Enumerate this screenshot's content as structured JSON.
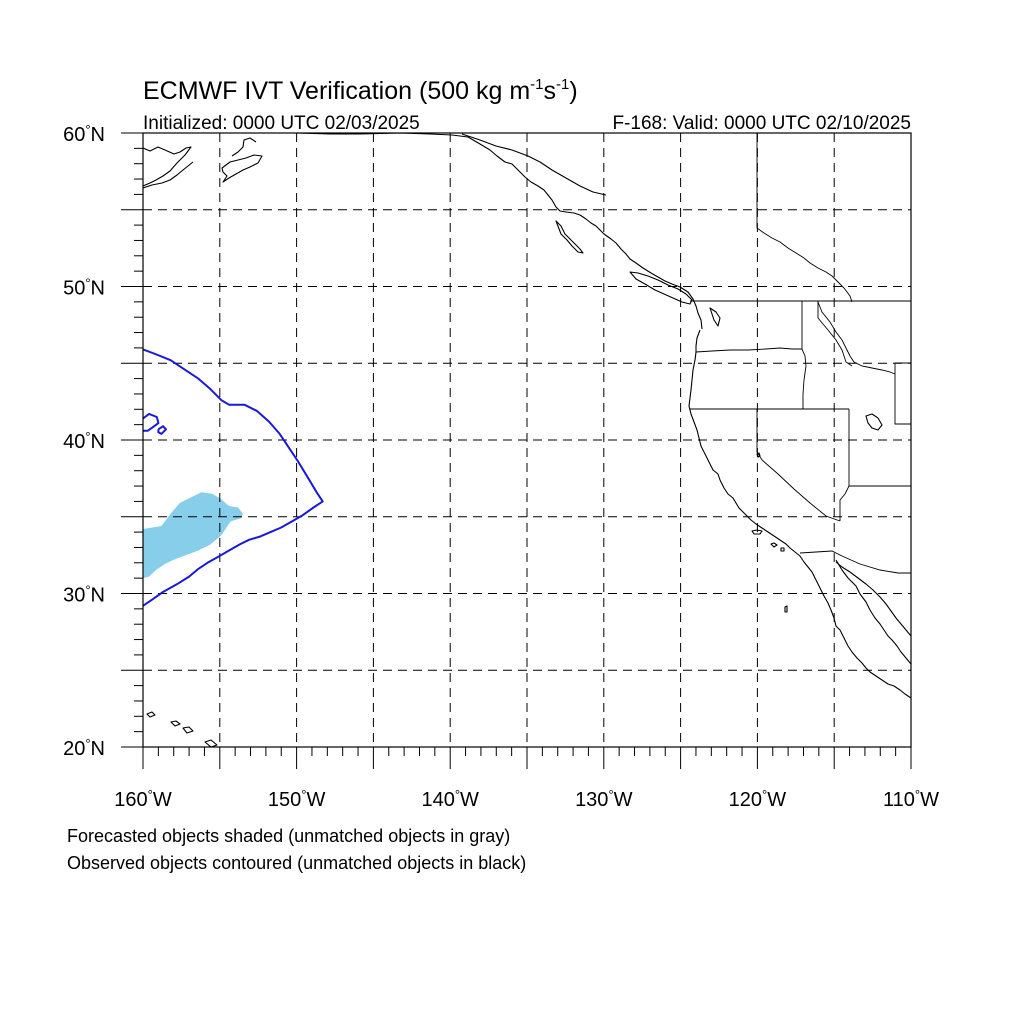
{
  "header": {
    "title_main": "ECMWF IVT Verification (500 kg m",
    "title_sup1": "-1",
    "title_mid": "s",
    "title_sup2": "-1",
    "title_end": ")",
    "initialized": "Initialized: 0000 UTC 02/03/2025",
    "valid": "F-168: Valid: 0000 UTC 02/10/2025"
  },
  "map": {
    "projection": "cylindrical-equidistant",
    "lon_range": [
      -160,
      -110
    ],
    "lat_range": [
      20,
      60
    ],
    "grid": "on",
    "grid_style": "dashed",
    "lat_labels": [
      {
        "lat": 60,
        "text": "60",
        "hem": "N"
      },
      {
        "lat": 50,
        "text": "50",
        "hem": "N"
      },
      {
        "lat": 40,
        "text": "40",
        "hem": "N"
      },
      {
        "lat": 30,
        "text": "30",
        "hem": "N"
      },
      {
        "lat": 20,
        "text": "20",
        "hem": "N"
      }
    ],
    "lon_labels": [
      {
        "lon": -160,
        "text": "160",
        "hem": "W"
      },
      {
        "lon": -150,
        "text": "150",
        "hem": "W"
      },
      {
        "lon": -140,
        "text": "140",
        "hem": "W"
      },
      {
        "lon": -130,
        "text": "130",
        "hem": "W"
      },
      {
        "lon": -120,
        "text": "120",
        "hem": "W"
      },
      {
        "lon": -110,
        "text": "110",
        "hem": "W"
      }
    ],
    "colors": {
      "forecast_fill": "#87ceeb",
      "observed_contour": "#1a1ad6",
      "coastline": "#000000"
    }
  },
  "objects": {
    "forecast": [
      {
        "type": "shaded",
        "matched": true,
        "lon_lat": [
          [
            -160,
            34.2
          ],
          [
            -158.8,
            34.4
          ],
          [
            -158.2,
            35.2
          ],
          [
            -157.6,
            35.9
          ],
          [
            -156.8,
            36.3
          ],
          [
            -156.2,
            36.6
          ],
          [
            -155.5,
            36.5
          ],
          [
            -155.0,
            36.2
          ],
          [
            -154.4,
            35.7
          ],
          [
            -153.8,
            35.6
          ],
          [
            -153.5,
            35.2
          ],
          [
            -153.6,
            34.9
          ],
          [
            -154.3,
            34.7
          ],
          [
            -154.9,
            33.8
          ],
          [
            -155.6,
            33.2
          ],
          [
            -156.4,
            32.8
          ],
          [
            -157.2,
            32.5
          ],
          [
            -158.0,
            32.2
          ],
          [
            -158.6,
            31.9
          ],
          [
            -159.2,
            31.5
          ],
          [
            -159.6,
            31.1
          ],
          [
            -160,
            31.0
          ]
        ]
      }
    ],
    "observed": [
      {
        "type": "contour",
        "matched": true,
        "lon_lat": [
          [
            -160,
            45.9
          ],
          [
            -159.2,
            45.6
          ],
          [
            -158.2,
            45.2
          ],
          [
            -157.3,
            44.6
          ],
          [
            -156.4,
            44.0
          ],
          [
            -155.6,
            43.3
          ],
          [
            -154.9,
            42.6
          ],
          [
            -154.4,
            42.3
          ],
          [
            -153.4,
            42.3
          ],
          [
            -152.6,
            41.9
          ],
          [
            -151.8,
            41.2
          ],
          [
            -151.1,
            40.4
          ],
          [
            -150.5,
            39.5
          ],
          [
            -149.9,
            38.6
          ],
          [
            -149.3,
            37.6
          ],
          [
            -148.7,
            36.6
          ],
          [
            -148.3,
            36.0
          ],
          [
            -148.9,
            35.6
          ],
          [
            -149.6,
            35.1
          ],
          [
            -150.3,
            34.7
          ],
          [
            -151.0,
            34.3
          ],
          [
            -151.7,
            34.0
          ],
          [
            -152.4,
            33.7
          ],
          [
            -153.1,
            33.5
          ],
          [
            -153.7,
            33.2
          ],
          [
            -154.4,
            32.8
          ],
          [
            -155.1,
            32.4
          ],
          [
            -155.8,
            32.0
          ],
          [
            -156.4,
            31.6
          ],
          [
            -157.0,
            31.1
          ],
          [
            -157.8,
            30.6
          ],
          [
            -158.7,
            30.1
          ],
          [
            -159.4,
            29.6
          ],
          [
            -160,
            29.2
          ]
        ]
      },
      {
        "type": "contour",
        "matched": true,
        "lon_lat": [
          [
            -160,
            41.4
          ],
          [
            -159.6,
            41.7
          ],
          [
            -159.1,
            41.5
          ],
          [
            -159.0,
            41.1
          ],
          [
            -159.4,
            40.8
          ],
          [
            -159.7,
            40.6
          ],
          [
            -160,
            40.6
          ]
        ]
      },
      {
        "type": "contour",
        "matched": true,
        "lon_lat": [
          [
            -159.0,
            40.7
          ],
          [
            -158.7,
            40.9
          ],
          [
            -158.5,
            40.7
          ],
          [
            -158.8,
            40.4
          ],
          [
            -159.0,
            40.5
          ],
          [
            -159.0,
            40.7
          ]
        ]
      }
    ]
  },
  "legend": {
    "line1": "Forecasted objects shaded (unmatched objects in gray)",
    "line2": "Observed objects contoured (unmatched objects in black)"
  }
}
